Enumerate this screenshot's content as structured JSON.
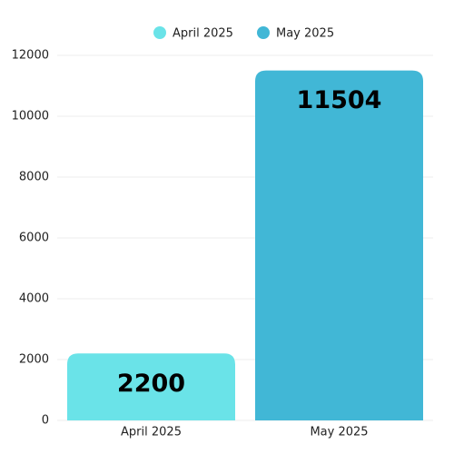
{
  "chart_data": {
    "type": "bar",
    "categories": [
      "April 2025",
      "May 2025"
    ],
    "series": [
      {
        "name": "April 2025",
        "color": "#6ae3e8",
        "values": [
          2200,
          null
        ]
      },
      {
        "name": "May 2025",
        "color": "#41b7d6",
        "values": [
          null,
          11504
        ]
      }
    ],
    "ylim": [
      0,
      12000
    ],
    "yticks": [
      0,
      2000,
      4000,
      6000,
      8000,
      10000,
      12000
    ],
    "grid": true,
    "legend": "top"
  }
}
